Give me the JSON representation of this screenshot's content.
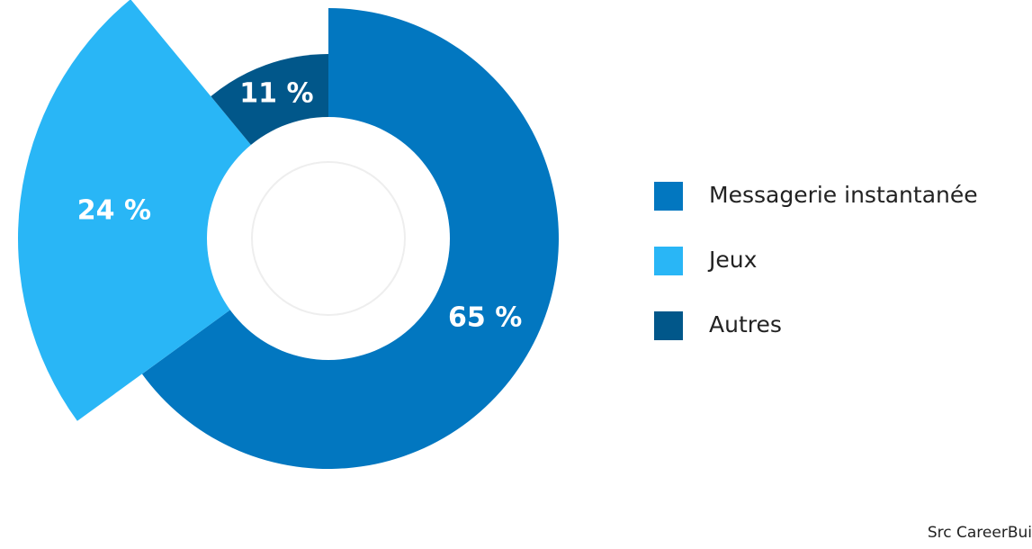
{
  "chart_data": {
    "type": "pie",
    "categories": [
      "Messagerie instantanée",
      "Jeux",
      "Autres"
    ],
    "values": [
      65,
      24,
      11
    ],
    "value_labels": [
      "65 %",
      "24 %",
      "11 %"
    ],
    "colors": [
      "#0277c0",
      "#29b6f6",
      "#01578a"
    ],
    "legend": "right",
    "source": "Src CareerBui"
  }
}
